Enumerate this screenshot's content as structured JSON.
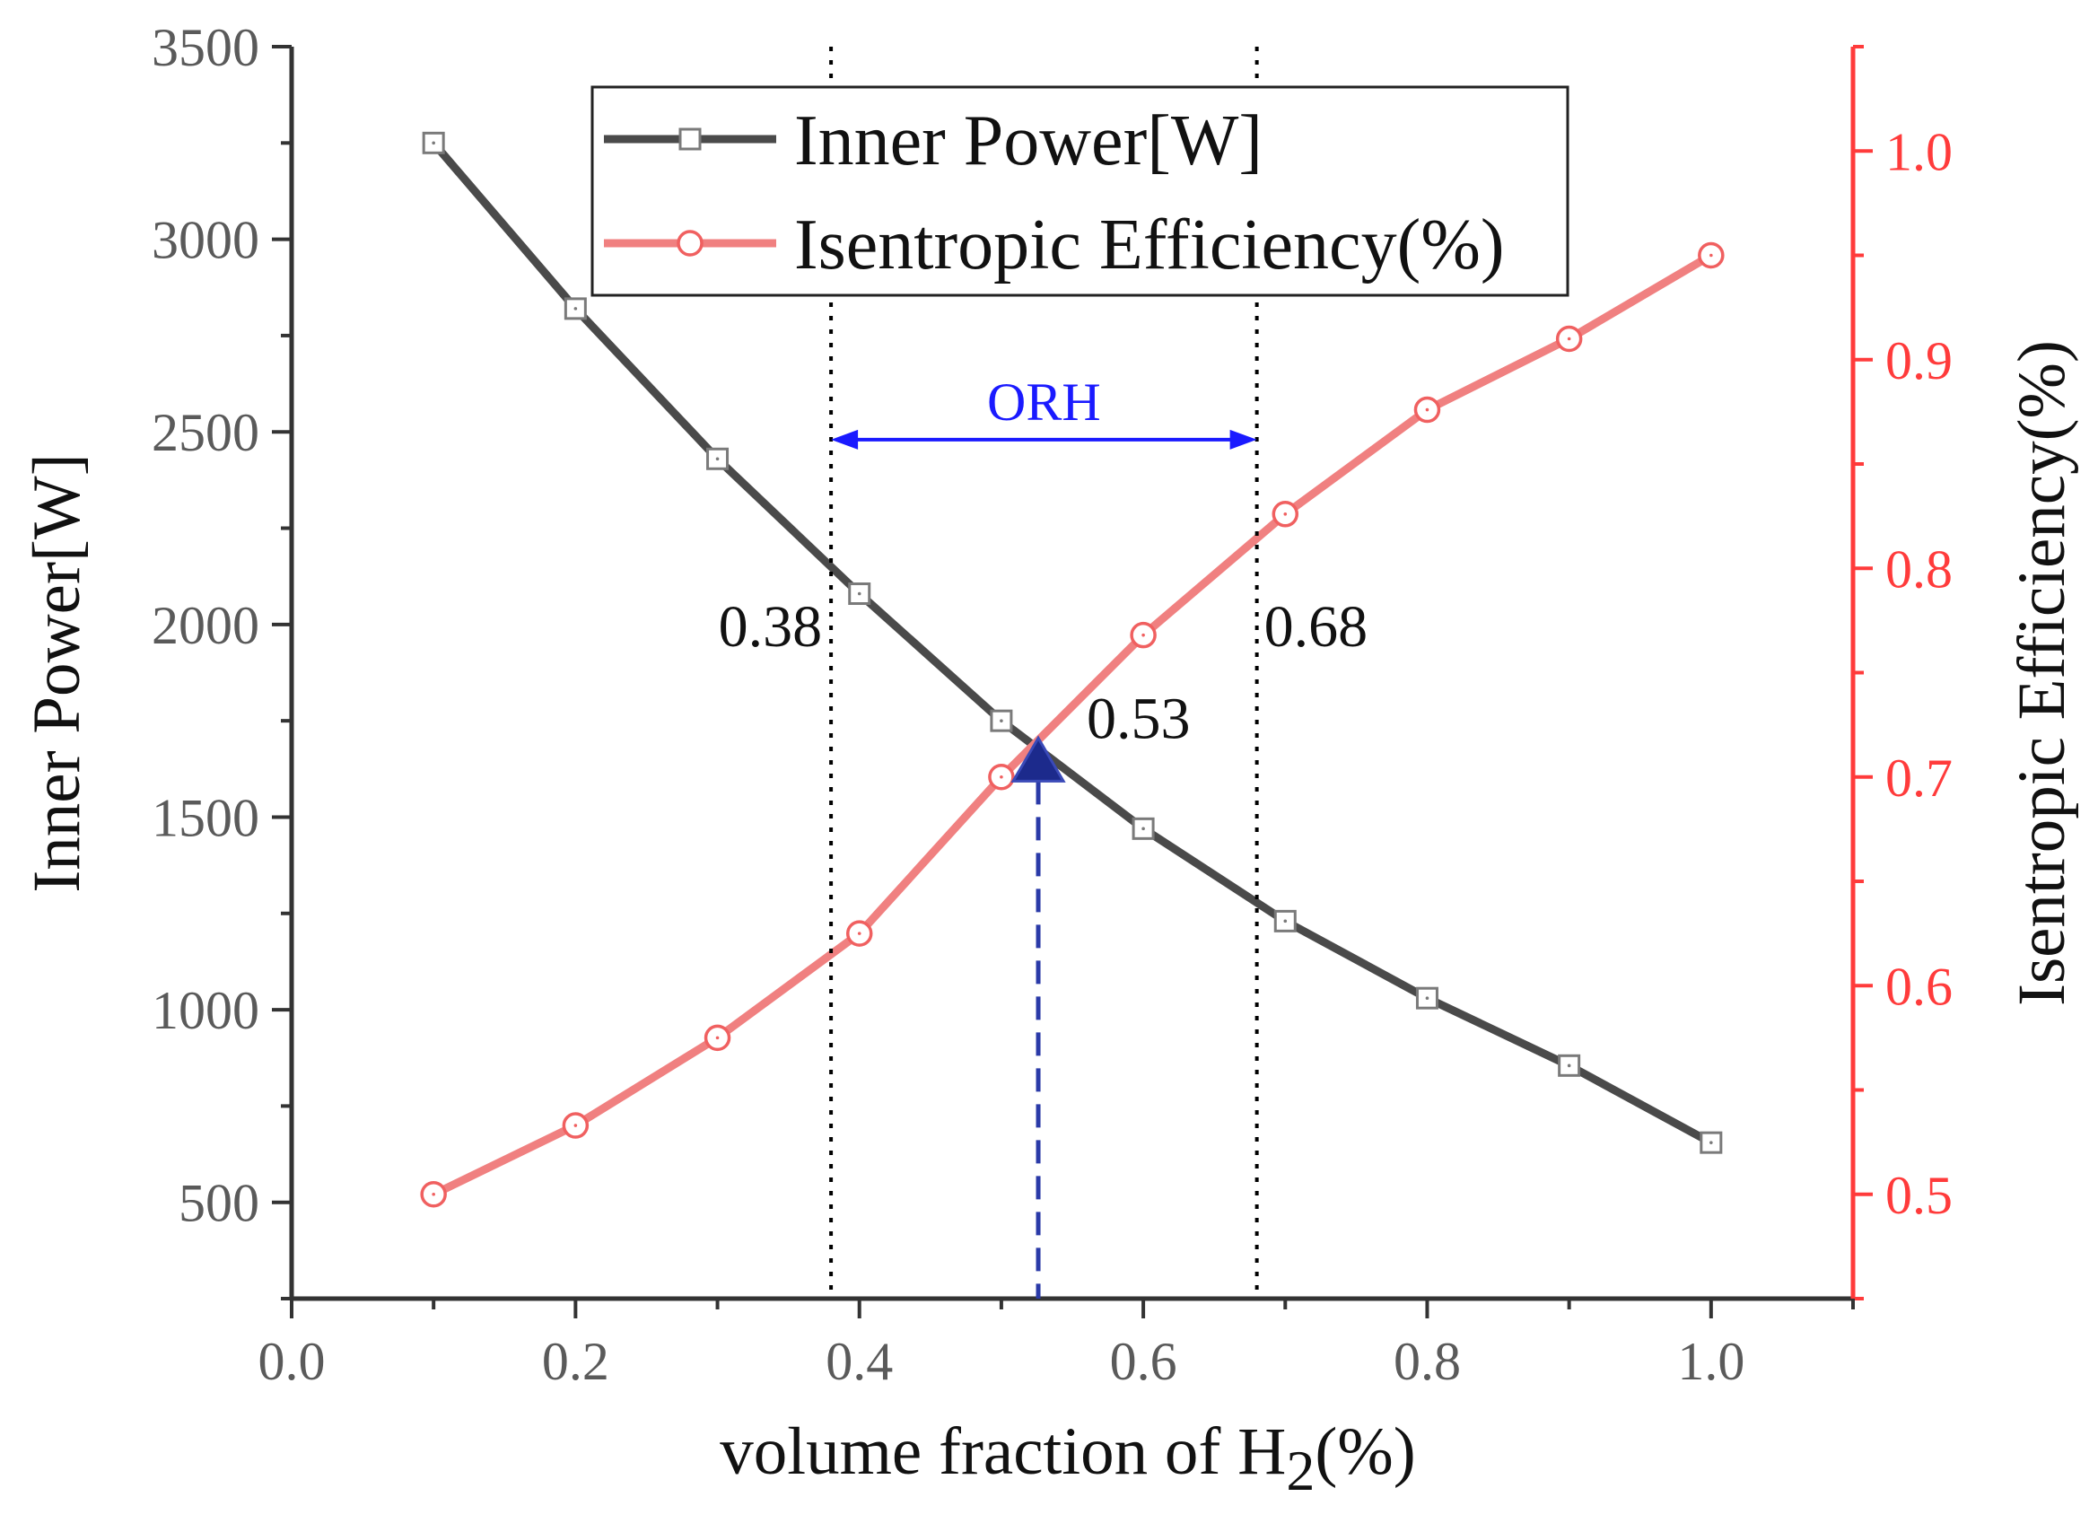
{
  "chart_data": {
    "type": "line",
    "x": [
      0.1,
      0.2,
      0.3,
      0.4,
      0.5,
      0.6,
      0.7,
      0.8,
      0.9,
      1.0
    ],
    "series": [
      {
        "name": "Inner Power[W]",
        "axis": "left",
        "color": "#4a4a4a",
        "marker": "square",
        "values": [
          3250,
          2820,
          2430,
          2080,
          1750,
          1470,
          1230,
          1030,
          855,
          655
        ]
      },
      {
        "name": "Isentropic Efficiency(%)",
        "axis": "right",
        "color": "#f08080",
        "marker": "circle",
        "values": [
          0.5,
          0.533,
          0.575,
          0.625,
          0.7,
          0.768,
          0.826,
          0.876,
          0.91,
          0.95
        ]
      }
    ],
    "xlabel": "volume fraction of H",
    "xlabel_sub": "2",
    "xlabel_suffix": "(%)",
    "ylabel_left": "Inner Power[W]",
    "ylabel_right": "Isentropic Efficiency(%)",
    "xlim": [
      0.0,
      1.1
    ],
    "ylim_left": [
      250,
      3500
    ],
    "ylim_right": [
      0.45,
      1.05
    ],
    "x_ticks": [
      0.0,
      0.2,
      0.4,
      0.6,
      0.8,
      1.0
    ],
    "x_tick_labels": [
      "0.0",
      "0.2",
      "0.4",
      "0.6",
      "0.8",
      "1.0"
    ],
    "y_left_ticks": [
      500,
      1000,
      1500,
      2000,
      2500,
      3000,
      3500
    ],
    "y_left_tick_labels": [
      "500",
      "1000",
      "1500",
      "2000",
      "2500",
      "3000",
      "3500"
    ],
    "y_right_ticks": [
      0.5,
      0.6,
      0.7,
      0.8,
      0.9,
      1.0
    ],
    "y_right_tick_labels": [
      "0.5",
      "0.6",
      "0.7",
      "0.8",
      "0.9",
      "1.0"
    ],
    "legend_position": "top-center",
    "annotations": {
      "vlines": [
        {
          "x": 0.38,
          "label": "0.38"
        },
        {
          "x": 0.68,
          "label": "0.68"
        }
      ],
      "intersection": {
        "x": 0.526,
        "y_left": 1640,
        "label": "0.53"
      },
      "range_arrow": {
        "from": 0.38,
        "to": 0.68,
        "y_left": 2480,
        "label": "ORH"
      }
    },
    "colors": {
      "left_axis": "#333333",
      "right_axis": "#ff3b3b",
      "annotation_blue": "#1a1aff",
      "marker_navy": "#1c2a8c"
    }
  }
}
